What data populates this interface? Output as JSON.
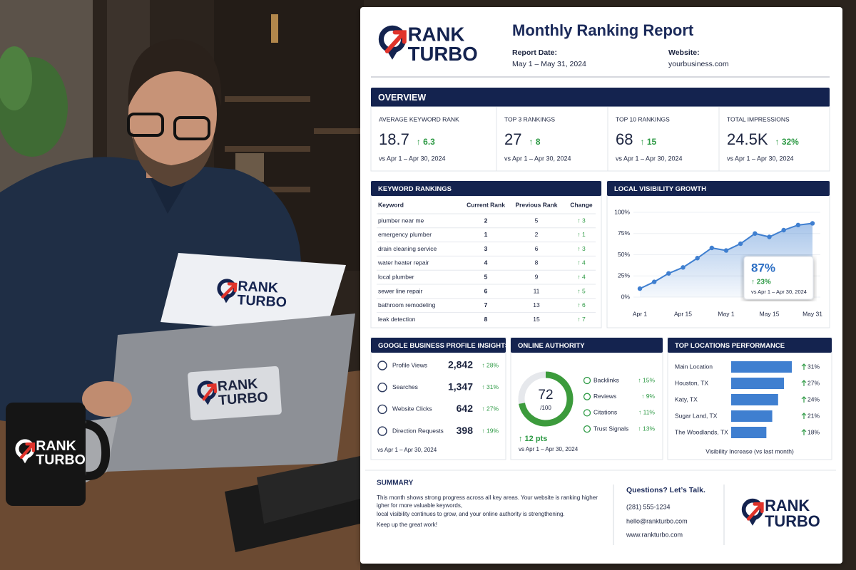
{
  "brand": {
    "line1": "RANK",
    "line2": "TURBO"
  },
  "header": {
    "title": "Monthly Ranking Report",
    "report_date_label": "Report Date:",
    "report_date": "May 1 – May 31, 2024",
    "website_label": "Website:",
    "website": "yourbusiness.com"
  },
  "overview": {
    "title": "OVERVIEW",
    "cards": [
      {
        "label": "AVERAGE KEYWORD RANK",
        "value": "18.7",
        "change": "↑ 6.3",
        "period": "vs Apr 1 – Apr 30, 2024"
      },
      {
        "label": "TOP 3 RANKINGS",
        "value": "27",
        "change": "↑ 8",
        "period": "vs Apr 1 – Apr 30, 2024"
      },
      {
        "label": "TOP 10 RANKINGS",
        "value": "68",
        "change": "↑ 15",
        "period": "vs Apr 1 – Apr 30, 2024"
      },
      {
        "label": "TOTAL IMPRESSIONS",
        "value": "24.5K",
        "change": "↑ 32%",
        "period": "vs Apr 1 – Apr 30, 2024"
      }
    ]
  },
  "keyword_rankings": {
    "title": "KEYWORD RANKINGS",
    "columns": [
      "Keyword",
      "Current Rank",
      "Previous Rank",
      "Change"
    ],
    "rows": [
      [
        "plumber near me",
        "2",
        "5",
        "↑ 3"
      ],
      [
        "emergency plumber",
        "1",
        "2",
        "↑ 1"
      ],
      [
        "drain cleaning service",
        "3",
        "6",
        "↑ 3"
      ],
      [
        "water heater repair",
        "4",
        "8",
        "↑ 4"
      ],
      [
        "local plumber",
        "5",
        "9",
        "↑ 4"
      ],
      [
        "sewer line repair",
        "6",
        "11",
        "↑ 5"
      ],
      [
        "bathroom remodeling",
        "7",
        "13",
        "↑ 6"
      ],
      [
        "leak detection",
        "8",
        "15",
        "↑ 7"
      ]
    ]
  },
  "local_visibility": {
    "title": "LOCAL VISIBILITY GROWTH",
    "chart": {
      "type": "area",
      "categories": [
        "Apr 1",
        null,
        null,
        "Apr 15",
        null,
        null,
        "May 1",
        null,
        null,
        "May 15",
        null,
        null,
        "May 31"
      ],
      "values": [
        10,
        18,
        28,
        35,
        46,
        58,
        55,
        63,
        75,
        71,
        79,
        85,
        87
      ],
      "color": "#3f7fd0",
      "ylim": [
        0,
        100
      ],
      "yticks": [
        {
          "value": 0,
          "label": "0%"
        },
        {
          "value": 25,
          "label": "25%"
        },
        {
          "value": 50,
          "label": "50%"
        },
        {
          "value": 75,
          "label": "75%"
        },
        {
          "value": 100,
          "label": "100%"
        }
      ]
    },
    "callout": {
      "value": "87%",
      "change": "↑ 23%",
      "period": "vs Apr 1 – Apr 30, 2024"
    }
  },
  "gbp_insights": {
    "title": "GOOGLE BUSINESS PROFILE INSIGHTS",
    "rows": [
      {
        "label": "Profile Views",
        "value": "2,842",
        "change": "↑ 28%"
      },
      {
        "label": "Searches",
        "value": "1,347",
        "change": "↑ 31%"
      },
      {
        "label": "Website Clicks",
        "value": "642",
        "change": "↑ 27%"
      },
      {
        "label": "Direction Requests",
        "value": "398",
        "change": "↑ 19%"
      }
    ],
    "period": "vs Apr 1 – Apr 30, 2024"
  },
  "online_authority": {
    "title": "ONLINE AUTHORITY",
    "score": 72,
    "score_max": {
      "value": 100,
      "label": "/100"
    },
    "change": "↑ 12 pts",
    "period": "vs Apr 1 – Apr 30, 2024",
    "metrics": [
      {
        "label": "Backlinks",
        "change": "↑ 15%"
      },
      {
        "label": "Reviews",
        "change": "↑ 9%"
      },
      {
        "label": "Citations",
        "change": "↑ 11%"
      },
      {
        "label": "Trust Signals",
        "change": "↑ 13%"
      }
    ]
  },
  "top_locations": {
    "title": "TOP LOCATIONS PERFORMANCE",
    "chart": {
      "type": "bar",
      "categories": [
        "Main Location",
        "Houston, TX",
        "Katy, TX",
        "Sugar Land, TX",
        "The Woodlands, TX"
      ],
      "values": [
        31,
        27,
        24,
        21,
        18
      ],
      "value_labels": [
        "31%",
        "27%",
        "24%",
        "21%",
        "18%"
      ],
      "color": "#3f7fd0",
      "xlim": [
        0,
        31
      ]
    },
    "caption": "Visibility Increase (vs last month)"
  },
  "summary": {
    "title": "SUMMARY",
    "lines": [
      "This month shows strong progress across all key areas. Your website is ranking higher",
      "igher for more valuable keywords,",
      "local visibility continues to grow, and your online authority is strengthening.",
      "Keep up the great work!"
    ]
  },
  "contact": {
    "title": "Questions? Let’s Talk.",
    "phone": "(281) 555-1234",
    "email": "hello@rankturbo.com",
    "web": "www.rankturbo.com"
  }
}
